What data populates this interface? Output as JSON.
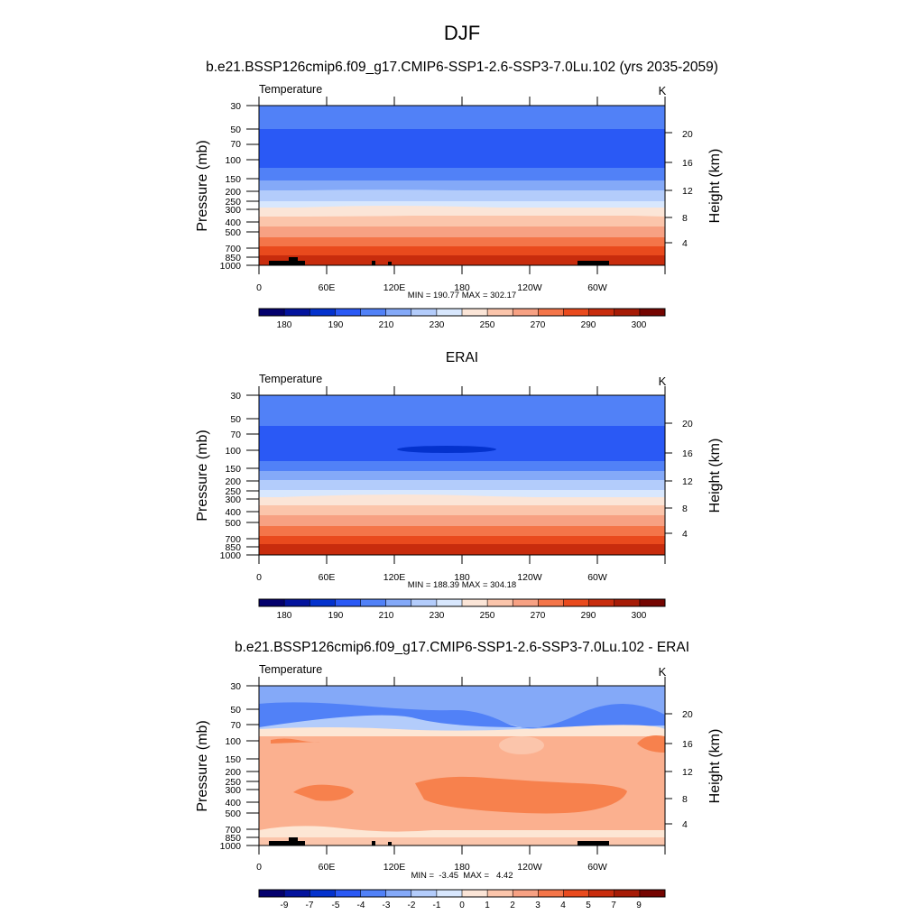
{
  "figure": {
    "title": "DJF",
    "panel_titles": [
      "b.e21.BSSP126cmip6.f09_g17.CMIP6-SSP1-2.6-SSP3-7.0Lu.102 (yrs 2035-2059)",
      "ERAI",
      "b.e21.BSSP126cmip6.f09_g17.CMIP6-SSP1-2.6-SSP3-7.0Lu.102 - ERAI"
    ]
  },
  "chart_data": [
    {
      "type": "heatmap",
      "variable": "Temperature",
      "units": "K",
      "ylabel": "Pressure (mb)",
      "ylabel_right": "Height (km)",
      "x_ticks": [
        "0",
        "60E",
        "120E",
        "180",
        "120W",
        "60W"
      ],
      "y_ticks": [
        "30",
        "50",
        "70",
        "100",
        "150",
        "200",
        "250",
        "300",
        "400",
        "500",
        "700",
        "850",
        "1000"
      ],
      "y_ticks_right": [
        "20",
        "16",
        "12",
        "8",
        "4"
      ],
      "y_scale": "log",
      "stats": "MIN = 190.77  MAX = 302.17",
      "min": 190.77,
      "max": 302.17,
      "colorbar_labels": [
        "180",
        "190",
        "210",
        "230",
        "250",
        "270",
        "290",
        "300"
      ]
    },
    {
      "type": "heatmap",
      "variable": "Temperature",
      "units": "K",
      "ylabel": "Pressure (mb)",
      "ylabel_right": "Height (km)",
      "x_ticks": [
        "0",
        "60E",
        "120E",
        "180",
        "120W",
        "60W"
      ],
      "y_ticks": [
        "30",
        "50",
        "70",
        "100",
        "150",
        "200",
        "250",
        "300",
        "400",
        "500",
        "700",
        "850",
        "1000"
      ],
      "y_ticks_right": [
        "20",
        "16",
        "12",
        "8",
        "4"
      ],
      "y_scale": "log",
      "stats": "MIN = 188.39  MAX = 304.18",
      "min": 188.39,
      "max": 304.18,
      "colorbar_labels": [
        "180",
        "190",
        "210",
        "230",
        "250",
        "270",
        "290",
        "300"
      ]
    },
    {
      "type": "heatmap",
      "variable": "Temperature",
      "units": "K",
      "ylabel": "Pressure (mb)",
      "ylabel_right": "Height (km)",
      "x_ticks": [
        "0",
        "60E",
        "120E",
        "180",
        "120W",
        "60W"
      ],
      "y_ticks": [
        "30",
        "50",
        "70",
        "100",
        "150",
        "200",
        "250",
        "300",
        "400",
        "500",
        "700",
        "850",
        "1000"
      ],
      "y_ticks_right": [
        "20",
        "16",
        "12",
        "8",
        "4"
      ],
      "y_scale": "log",
      "stats": "MIN =  -3.45  MAX =   4.42",
      "min": -3.45,
      "max": 4.42,
      "colorbar_labels": [
        "-9",
        "-7",
        "-5",
        "-4",
        "-3",
        "-2",
        "-1",
        "0",
        "1",
        "2",
        "3",
        "4",
        "5",
        "7",
        "9"
      ]
    }
  ],
  "colorbar_colors": [
    "#03006d",
    "#03139d",
    "#0432cd",
    "#2a59f5",
    "#5181f7",
    "#84a9f8",
    "#b3ccfb",
    "#d8e7fd",
    "#fbe5d7",
    "#fbc5ab",
    "#f7a183",
    "#f47549",
    "#e94a1d",
    "#c82c0d",
    "#a61b06",
    "#750501"
  ],
  "field_colors": {
    "panel1_bands": [
      "#5181f7",
      "#2a59f5",
      "#2a59f5",
      "#5181f7",
      "#84a9f8",
      "#b3ccfb",
      "#d8e7fd",
      "#fbe5d7",
      "#fbc5ab",
      "#f7a183",
      "#f47549",
      "#e94a1d",
      "#c82c0d"
    ],
    "panel2_bands": [
      "#5181f7",
      "#2a59f5",
      "#2a59f5",
      "#5181f7",
      "#84a9f8",
      "#b3ccfb",
      "#d8e7fd",
      "#fbe5d7",
      "#fbc5ab",
      "#f7a183",
      "#f47549",
      "#e94a1d",
      "#c82c0d"
    ],
    "diff_base": "#fbb08f",
    "diff_upper": "#84a9f8",
    "diff_mid": "#5181f7",
    "diff_warm": "#f7814d",
    "diff_light": "#fde6d4",
    "topography": "#000000"
  }
}
